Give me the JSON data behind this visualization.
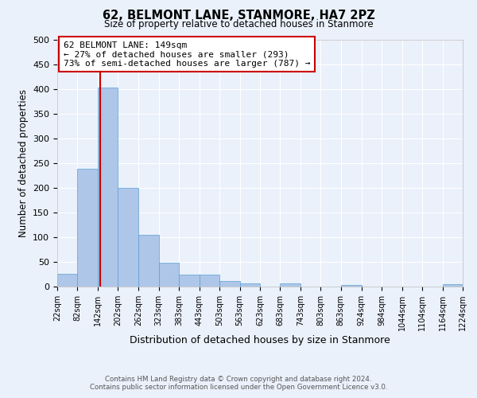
{
  "title": "62, BELMONT LANE, STANMORE, HA7 2PZ",
  "subtitle": "Size of property relative to detached houses in Stanmore",
  "xlabel": "Distribution of detached houses by size in Stanmore",
  "ylabel": "Number of detached properties",
  "bin_edges": [
    22,
    82,
    142,
    202,
    262,
    323,
    383,
    443,
    503,
    563,
    623,
    683,
    743,
    803,
    863,
    924,
    984,
    1044,
    1104,
    1164,
    1224
  ],
  "bin_labels": [
    "22sqm",
    "82sqm",
    "142sqm",
    "202sqm",
    "262sqm",
    "323sqm",
    "383sqm",
    "443sqm",
    "503sqm",
    "563sqm",
    "623sqm",
    "683sqm",
    "743sqm",
    "803sqm",
    "863sqm",
    "924sqm",
    "984sqm",
    "1044sqm",
    "1104sqm",
    "1164sqm",
    "1224sqm"
  ],
  "bar_heights": [
    26,
    238,
    404,
    200,
    105,
    48,
    25,
    25,
    12,
    7,
    0,
    6,
    0,
    0,
    4,
    0,
    0,
    0,
    0,
    5
  ],
  "bar_color": "#aec6e8",
  "bar_edge_color": "#5a9fd4",
  "property_line_x": 149,
  "vline_color": "#cc0000",
  "annotation_title": "62 BELMONT LANE: 149sqm",
  "annotation_line1": "← 27% of detached houses are smaller (293)",
  "annotation_line2": "73% of semi-detached houses are larger (787) →",
  "annotation_box_color": "#ffffff",
  "annotation_box_edge_color": "#cc0000",
  "ylim": [
    0,
    500
  ],
  "yticks": [
    0,
    50,
    100,
    150,
    200,
    250,
    300,
    350,
    400,
    450,
    500
  ],
  "background_color": "#eaf1fb",
  "grid_color": "#ffffff",
  "footer_line1": "Contains HM Land Registry data © Crown copyright and database right 2024.",
  "footer_line2": "Contains public sector information licensed under the Open Government Licence v3.0."
}
